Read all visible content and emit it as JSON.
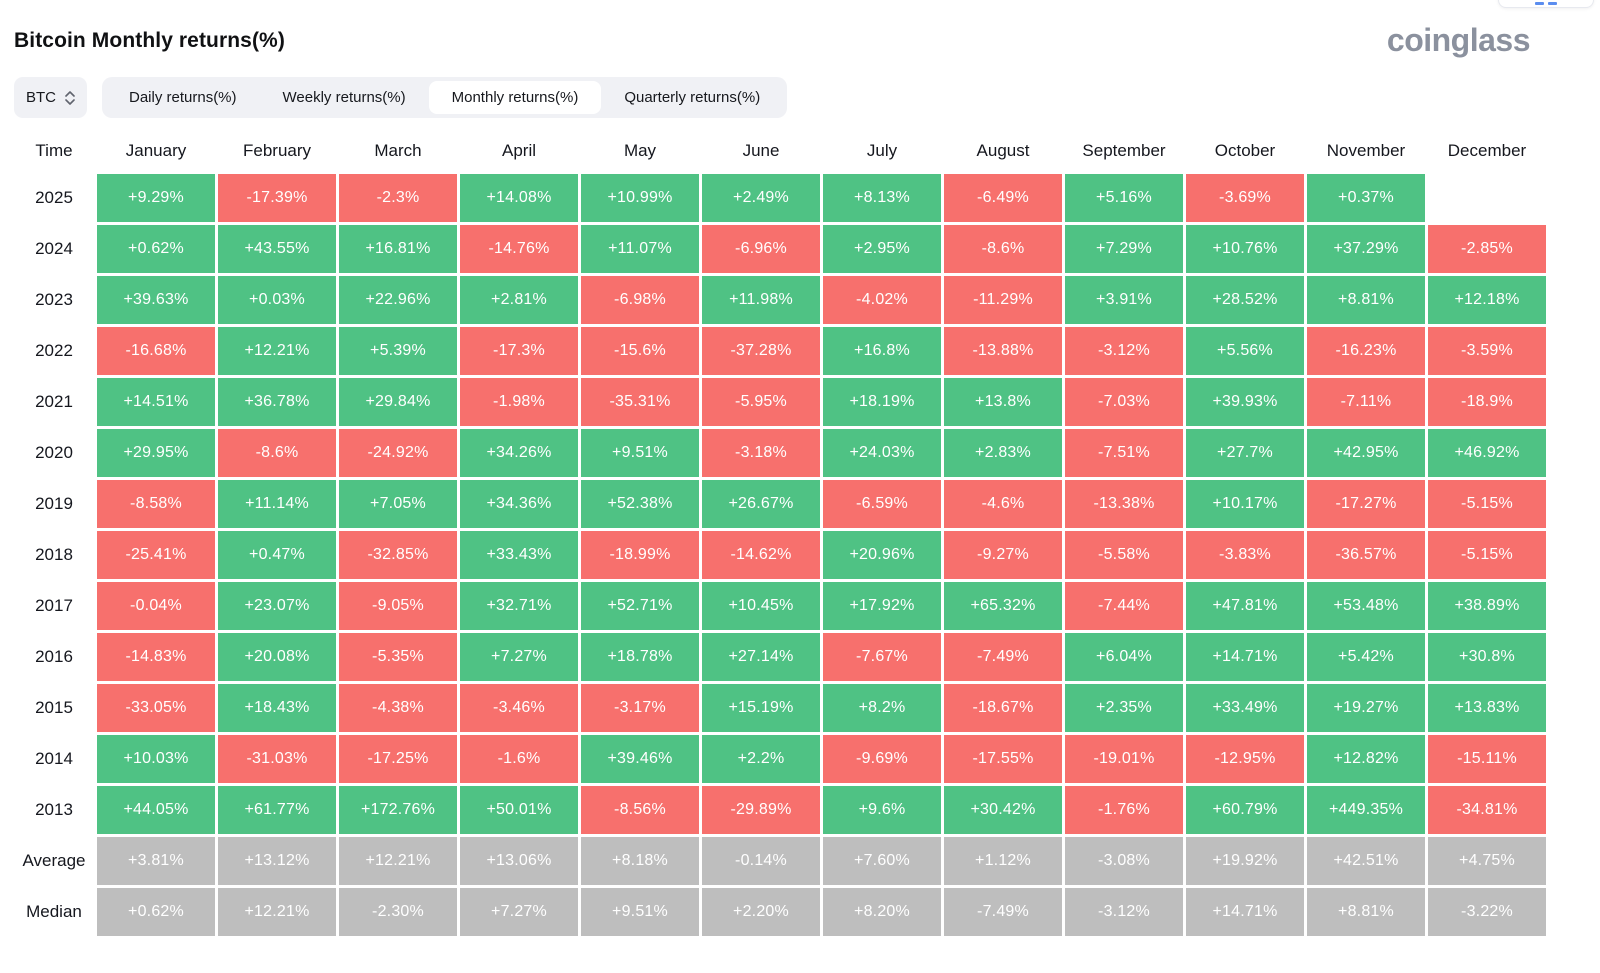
{
  "page": {
    "title": "Bitcoin Monthly returns(%)",
    "logo": "coinglass"
  },
  "controls": {
    "symbol_selector": {
      "value": "BTC"
    },
    "tabs": [
      {
        "label": "Daily returns(%)",
        "active": false
      },
      {
        "label": "Weekly returns(%)",
        "active": false
      },
      {
        "label": "Monthly returns(%)",
        "active": true
      },
      {
        "label": "Quarterly returns(%)",
        "active": false
      }
    ]
  },
  "colors": {
    "positive": "#4fc284",
    "negative": "#f7706d",
    "summary": "#bebebe",
    "tab_bg": "#f0f1f5",
    "logo": "#8b919e"
  },
  "chart_data": {
    "type": "table",
    "title": "Bitcoin Monthly returns(%)",
    "legend": "green cell = positive monthly return, red cell = negative monthly return, gray cells = Average/Median summary rows, blank = no data yet",
    "columns": [
      "Time",
      "January",
      "February",
      "March",
      "April",
      "May",
      "June",
      "July",
      "August",
      "September",
      "October",
      "November",
      "December"
    ],
    "rows": [
      {
        "label": "2025",
        "type": "year",
        "values": [
          "+9.29%",
          "-17.39%",
          "-2.3%",
          "+14.08%",
          "+10.99%",
          "+2.49%",
          "+8.13%",
          "-6.49%",
          "+5.16%",
          "-3.69%",
          "+0.37%",
          null
        ]
      },
      {
        "label": "2024",
        "type": "year",
        "values": [
          "+0.62%",
          "+43.55%",
          "+16.81%",
          "-14.76%",
          "+11.07%",
          "-6.96%",
          "+2.95%",
          "-8.6%",
          "+7.29%",
          "+10.76%",
          "+37.29%",
          "-2.85%"
        ]
      },
      {
        "label": "2023",
        "type": "year",
        "values": [
          "+39.63%",
          "+0.03%",
          "+22.96%",
          "+2.81%",
          "-6.98%",
          "+11.98%",
          "-4.02%",
          "-11.29%",
          "+3.91%",
          "+28.52%",
          "+8.81%",
          "+12.18%"
        ]
      },
      {
        "label": "2022",
        "type": "year",
        "values": [
          "-16.68%",
          "+12.21%",
          "+5.39%",
          "-17.3%",
          "-15.6%",
          "-37.28%",
          "+16.8%",
          "-13.88%",
          "-3.12%",
          "+5.56%",
          "-16.23%",
          "-3.59%"
        ]
      },
      {
        "label": "2021",
        "type": "year",
        "values": [
          "+14.51%",
          "+36.78%",
          "+29.84%",
          "-1.98%",
          "-35.31%",
          "-5.95%",
          "+18.19%",
          "+13.8%",
          "-7.03%",
          "+39.93%",
          "-7.11%",
          "-18.9%"
        ]
      },
      {
        "label": "2020",
        "type": "year",
        "values": [
          "+29.95%",
          "-8.6%",
          "-24.92%",
          "+34.26%",
          "+9.51%",
          "-3.18%",
          "+24.03%",
          "+2.83%",
          "-7.51%",
          "+27.7%",
          "+42.95%",
          "+46.92%"
        ]
      },
      {
        "label": "2019",
        "type": "year",
        "values": [
          "-8.58%",
          "+11.14%",
          "+7.05%",
          "+34.36%",
          "+52.38%",
          "+26.67%",
          "-6.59%",
          "-4.6%",
          "-13.38%",
          "+10.17%",
          "-17.27%",
          "-5.15%"
        ]
      },
      {
        "label": "2018",
        "type": "year",
        "values": [
          "-25.41%",
          "+0.47%",
          "-32.85%",
          "+33.43%",
          "-18.99%",
          "-14.62%",
          "+20.96%",
          "-9.27%",
          "-5.58%",
          "-3.83%",
          "-36.57%",
          "-5.15%"
        ]
      },
      {
        "label": "2017",
        "type": "year",
        "values": [
          "-0.04%",
          "+23.07%",
          "-9.05%",
          "+32.71%",
          "+52.71%",
          "+10.45%",
          "+17.92%",
          "+65.32%",
          "-7.44%",
          "+47.81%",
          "+53.48%",
          "+38.89%"
        ]
      },
      {
        "label": "2016",
        "type": "year",
        "values": [
          "-14.83%",
          "+20.08%",
          "-5.35%",
          "+7.27%",
          "+18.78%",
          "+27.14%",
          "-7.67%",
          "-7.49%",
          "+6.04%",
          "+14.71%",
          "+5.42%",
          "+30.8%"
        ]
      },
      {
        "label": "2015",
        "type": "year",
        "values": [
          "-33.05%",
          "+18.43%",
          "-4.38%",
          "-3.46%",
          "-3.17%",
          "+15.19%",
          "+8.2%",
          "-18.67%",
          "+2.35%",
          "+33.49%",
          "+19.27%",
          "+13.83%"
        ]
      },
      {
        "label": "2014",
        "type": "year",
        "values": [
          "+10.03%",
          "-31.03%",
          "-17.25%",
          "-1.6%",
          "+39.46%",
          "+2.2%",
          "-9.69%",
          "-17.55%",
          "-19.01%",
          "-12.95%",
          "+12.82%",
          "-15.11%"
        ]
      },
      {
        "label": "2013",
        "type": "year",
        "values": [
          "+44.05%",
          "+61.77%",
          "+172.76%",
          "+50.01%",
          "-8.56%",
          "-29.89%",
          "+9.6%",
          "+30.42%",
          "-1.76%",
          "+60.79%",
          "+449.35%",
          "-34.81%"
        ]
      },
      {
        "label": "Average",
        "type": "summary",
        "values": [
          "+3.81%",
          "+13.12%",
          "+12.21%",
          "+13.06%",
          "+8.18%",
          "-0.14%",
          "+7.60%",
          "+1.12%",
          "-3.08%",
          "+19.92%",
          "+42.51%",
          "+4.75%"
        ]
      },
      {
        "label": "Median",
        "type": "summary",
        "values": [
          "+0.62%",
          "+12.21%",
          "-2.30%",
          "+7.27%",
          "+9.51%",
          "+2.20%",
          "+8.20%",
          "-7.49%",
          "-3.12%",
          "+14.71%",
          "+8.81%",
          "-3.22%"
        ]
      }
    ]
  }
}
